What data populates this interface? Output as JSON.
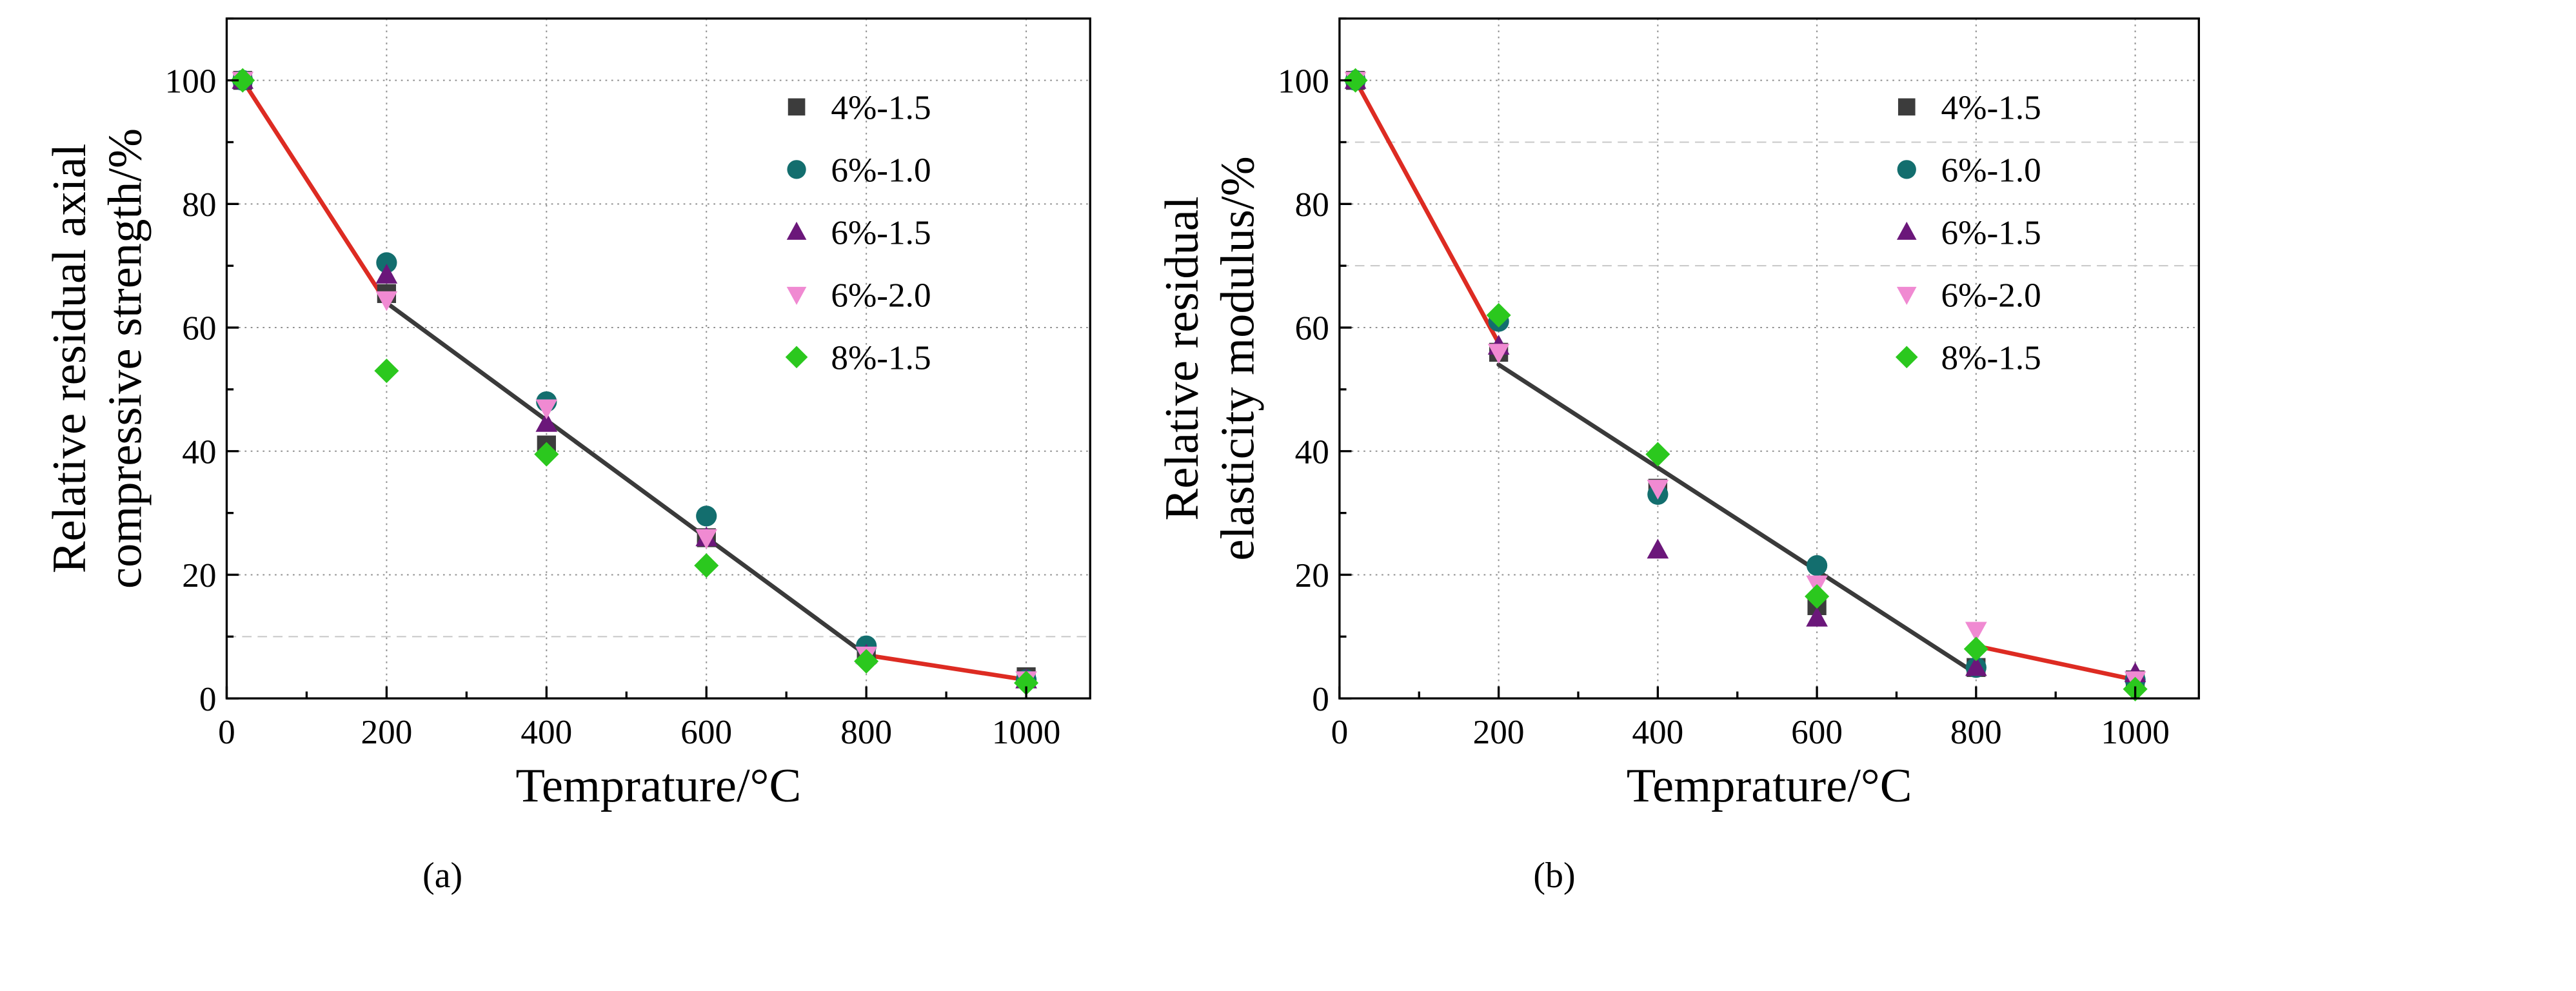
{
  "chart_data": [
    {
      "type": "scatter",
      "panel_label": "(a)",
      "title": "",
      "xlabel": "Temprature/°C",
      "ylabel_line1": "Relative residual axial",
      "ylabel_line2": "compressive strength/%",
      "xlim": [
        0,
        1080
      ],
      "ylim": [
        0,
        110
      ],
      "xticks": [
        0,
        200,
        400,
        600,
        800,
        1000
      ],
      "yticks": [
        0,
        20,
        40,
        60,
        80,
        100
      ],
      "legend_position": "top-right",
      "series": [
        {
          "name": "4%-1.5",
          "marker": "square",
          "color": "#3c3c3c",
          "points": [
            [
              20,
              100
            ],
            [
              200,
              65.5
            ],
            [
              400,
              41
            ],
            [
              600,
              26
            ],
            [
              800,
              7
            ],
            [
              1000,
              3.5
            ]
          ]
        },
        {
          "name": "6%-1.0",
          "marker": "circle",
          "color": "#136e6e",
          "points": [
            [
              20,
              100
            ],
            [
              200,
              70.5
            ],
            [
              400,
              48
            ],
            [
              600,
              29.5
            ],
            [
              800,
              8.5
            ],
            [
              1000,
              3
            ]
          ]
        },
        {
          "name": "6%-1.5",
          "marker": "triangle-up",
          "color": "#6b177a",
          "points": [
            [
              20,
              100
            ],
            [
              200,
              68.5
            ],
            [
              400,
              44.5
            ],
            [
              600,
              26
            ],
            [
              800,
              7
            ],
            [
              1000,
              3
            ]
          ]
        },
        {
          "name": "6%-2.0",
          "marker": "triangle-down",
          "color": "#f08ad2",
          "points": [
            [
              20,
              100
            ],
            [
              200,
              64.5
            ],
            [
              400,
              47
            ],
            [
              600,
              26
            ],
            [
              800,
              7
            ],
            [
              1000,
              3
            ]
          ]
        },
        {
          "name": "8%-1.5",
          "marker": "diamond",
          "color": "#2bc81e",
          "points": [
            [
              20,
              100
            ],
            [
              200,
              53
            ],
            [
              400,
              39.5
            ],
            [
              600,
              21.5
            ],
            [
              800,
              6
            ],
            [
              1000,
              2.5
            ]
          ]
        }
      ],
      "fit_lines": [
        {
          "color": "#dd2b22",
          "points": [
            [
              20,
              100
            ],
            [
              200,
              64
            ]
          ]
        },
        {
          "color": "#3a3a3a",
          "points": [
            [
              200,
              64
            ],
            [
              800,
              7
            ]
          ]
        },
        {
          "color": "#dd2b22",
          "points": [
            [
              800,
              7
            ],
            [
              1000,
              3
            ]
          ]
        }
      ],
      "extra_grid_y": [
        10
      ]
    },
    {
      "type": "scatter",
      "panel_label": "(b)",
      "title": "",
      "xlabel": "Temprature/°C",
      "ylabel_line1": "Relative residual",
      "ylabel_line2": "elasticity modulus/%",
      "xlim": [
        0,
        1080
      ],
      "ylim": [
        0,
        110
      ],
      "xticks": [
        0,
        200,
        400,
        600,
        800,
        1000
      ],
      "yticks": [
        0,
        20,
        40,
        60,
        80,
        100
      ],
      "legend_position": "top-right",
      "series": [
        {
          "name": "4%-1.5",
          "marker": "square",
          "color": "#3c3c3c",
          "points": [
            [
              20,
              100
            ],
            [
              200,
              56
            ],
            [
              400,
              34
            ],
            [
              600,
              15
            ],
            [
              800,
              5
            ],
            [
              1000,
              3
            ]
          ]
        },
        {
          "name": "6%-1.0",
          "marker": "circle",
          "color": "#136e6e",
          "points": [
            [
              20,
              100
            ],
            [
              200,
              61
            ],
            [
              400,
              33
            ],
            [
              600,
              21.5
            ],
            [
              800,
              5
            ],
            [
              1000,
              3
            ]
          ]
        },
        {
          "name": "6%-1.5",
          "marker": "triangle-up",
          "color": "#6b177a",
          "points": [
            [
              20,
              100
            ],
            [
              200,
              57
            ],
            [
              400,
              24
            ],
            [
              600,
              13
            ],
            [
              800,
              5
            ],
            [
              1000,
              4
            ]
          ]
        },
        {
          "name": "6%-2.0",
          "marker": "triangle-down",
          "color": "#f08ad2",
          "points": [
            [
              20,
              100
            ],
            [
              200,
              56
            ],
            [
              400,
              34
            ],
            [
              600,
              18.5
            ],
            [
              800,
              11
            ],
            [
              1000,
              3
            ]
          ]
        },
        {
          "name": "8%-1.5",
          "marker": "diamond",
          "color": "#2bc81e",
          "points": [
            [
              20,
              100
            ],
            [
              200,
              62
            ],
            [
              400,
              39.5
            ],
            [
              600,
              16.5
            ],
            [
              800,
              8
            ],
            [
              1000,
              1.5
            ]
          ]
        }
      ],
      "fit_lines": [
        {
          "color": "#dd2b22",
          "points": [
            [
              20,
              100
            ],
            [
              200,
              57.5
            ]
          ]
        },
        {
          "color": "#3a3a3a",
          "points": [
            [
              200,
              54
            ],
            [
              800,
              4
            ]
          ]
        },
        {
          "color": "#dd2b22",
          "points": [
            [
              800,
              8.5
            ],
            [
              1000,
              3
            ]
          ]
        }
      ],
      "extra_grid_y": [
        70,
        90
      ]
    }
  ]
}
